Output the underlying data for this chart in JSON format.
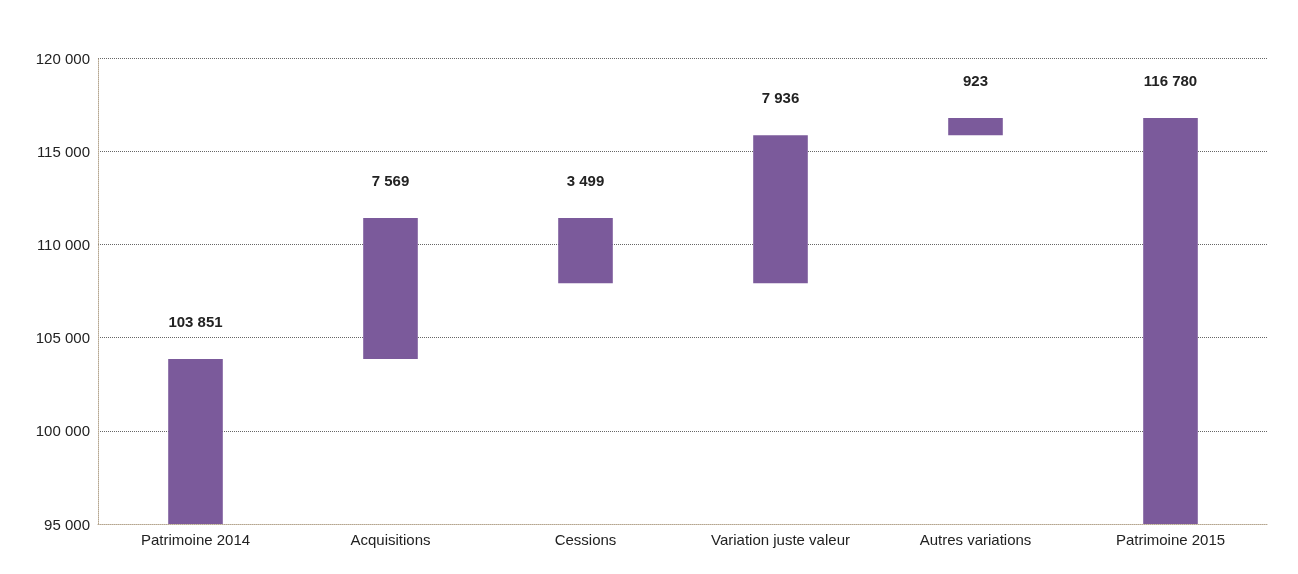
{
  "chart_data": {
    "type": "bar",
    "categories": [
      "Patrimoine 2014",
      "Acquisitions",
      "Cessions",
      "Variation juste valeur",
      "Autres variations",
      "Patrimoine 2015"
    ],
    "values": [
      103851,
      7569,
      3499,
      7936,
      923,
      116780
    ],
    "base": [
      null,
      103851,
      107921,
      107921,
      115857,
      null
    ],
    "value_labels": [
      "103 851",
      "7 569",
      "3 499",
      "7 936",
      "923",
      "116 780"
    ],
    "color": "#7b5a9b",
    "ylim": [
      95000,
      120000
    ],
    "yticks": [
      {
        "value": 95000,
        "label": "95 000"
      },
      {
        "value": 100000,
        "label": "100 000"
      },
      {
        "value": 105000,
        "label": "105 000"
      },
      {
        "value": 110000,
        "label": "110 000"
      },
      {
        "value": 115000,
        "label": "115 000"
      },
      {
        "value": 120000,
        "label": "120 000"
      }
    ],
    "grid": "y"
  }
}
